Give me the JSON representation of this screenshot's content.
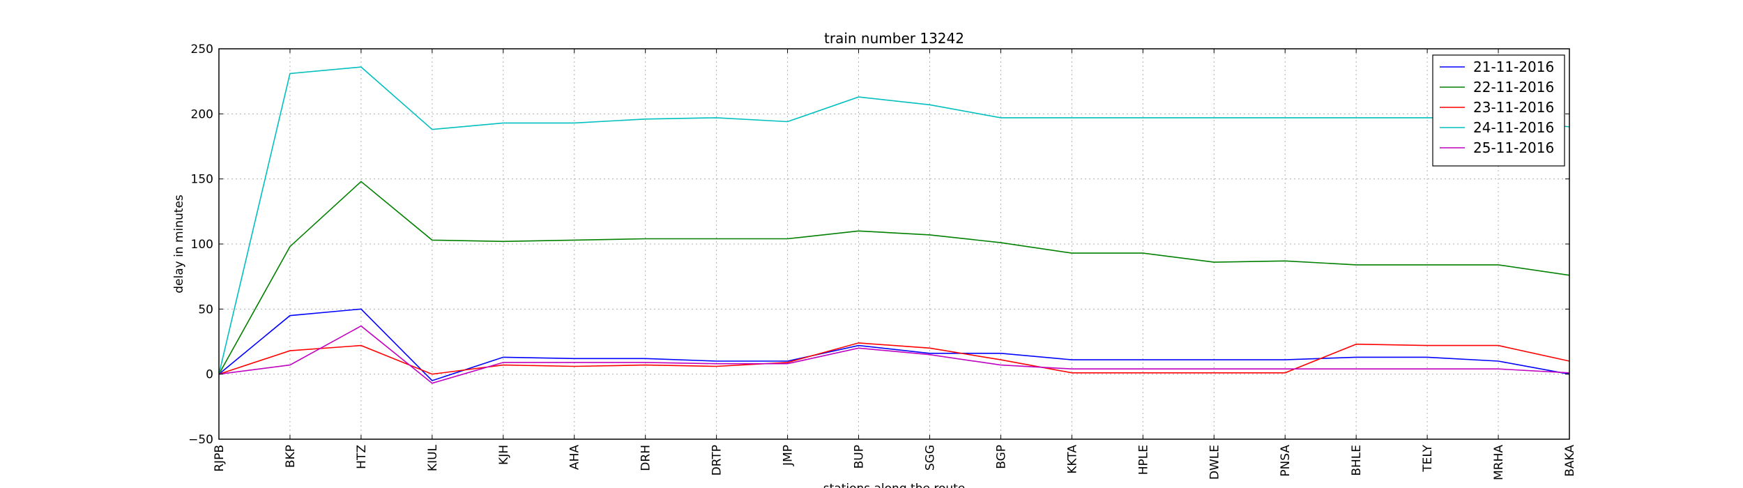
{
  "chart_data": {
    "type": "line",
    "title": "train number 13242",
    "xlabel": "stations along the route",
    "ylabel": "delay in minutes",
    "ylim": [
      -50,
      250
    ],
    "yticks": [
      -50,
      0,
      50,
      100,
      150,
      200,
      250
    ],
    "grid": true,
    "legend_position": "top-right",
    "categories": [
      "RJPB",
      "BKP",
      "HTZ",
      "KIUL",
      "KJH",
      "AHA",
      "DRH",
      "DRTP",
      "JMP",
      "BUP",
      "SGG",
      "BGP",
      "KKTA",
      "HPLE",
      "DWLE",
      "PNSA",
      "BHLE",
      "TELY",
      "MRHA",
      "BAKA"
    ],
    "series": [
      {
        "name": "21-11-2016",
        "color": "#0000ff",
        "values": [
          0,
          45,
          50,
          -5,
          13,
          12,
          12,
          10,
          10,
          22,
          16,
          16,
          11,
          11,
          11,
          11,
          13,
          13,
          10,
          0
        ]
      },
      {
        "name": "22-11-2016",
        "color": "#008000",
        "values": [
          0,
          98,
          148,
          103,
          102,
          103,
          104,
          104,
          104,
          110,
          107,
          101,
          93,
          93,
          86,
          87,
          84,
          84,
          84,
          76
        ]
      },
      {
        "name": "23-11-2016",
        "color": "#ff0000",
        "values": [
          0,
          18,
          22,
          0,
          7,
          6,
          7,
          6,
          9,
          24,
          20,
          11,
          1,
          1,
          1,
          1,
          23,
          22,
          22,
          10
        ]
      },
      {
        "name": "24-11-2016",
        "color": "#00bfbf",
        "values": [
          0,
          231,
          236,
          188,
          193,
          193,
          196,
          197,
          194,
          213,
          207,
          197,
          197,
          197,
          197,
          197,
          197,
          197,
          197,
          190
        ]
      },
      {
        "name": "25-11-2016",
        "color": "#bf00bf",
        "values": [
          0,
          7,
          37,
          -7,
          9,
          9,
          9,
          8,
          8,
          20,
          15,
          7,
          4,
          4,
          4,
          4,
          4,
          4,
          4,
          1
        ]
      }
    ]
  }
}
